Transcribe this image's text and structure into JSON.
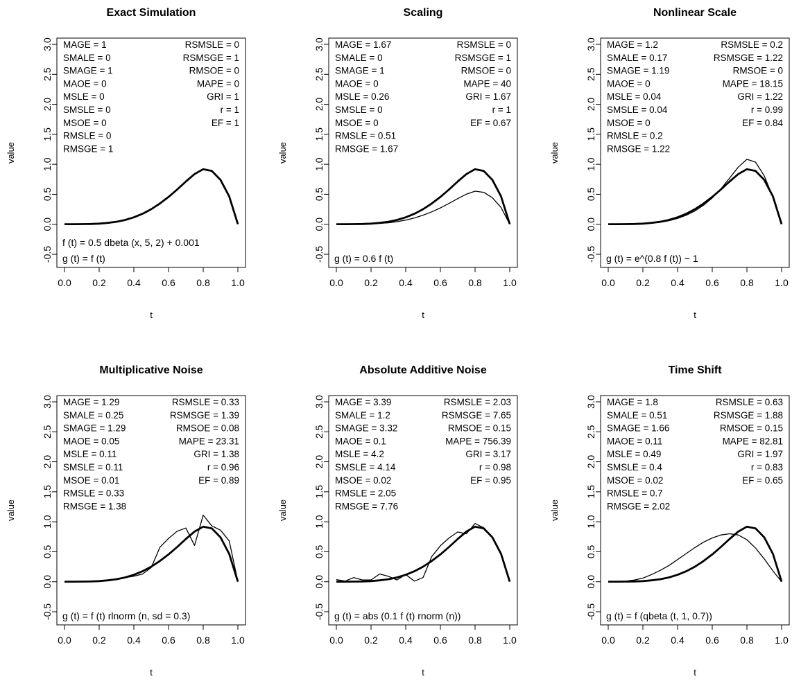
{
  "figure": {
    "xlabel": "t",
    "ylabel": "value",
    "xlim": [
      0,
      1
    ],
    "ylim": [
      -0.5,
      3.0
    ],
    "xticks": [
      "0.0",
      "0.2",
      "0.4",
      "0.6",
      "0.8",
      "1.0"
    ],
    "yticks": [
      "-0.5",
      "0.0",
      "0.5",
      "1.0",
      "1.5",
      "2.0",
      "2.5",
      "3.0"
    ],
    "thick_line_color": "#000000",
    "thin_line_color": "#000000"
  },
  "chart_data": [
    {
      "type": "line",
      "title": "Exact Simulation",
      "xlabel": "t",
      "ylabel": "value",
      "xlim": [
        0,
        1
      ],
      "ylim": [
        -0.5,
        3.0
      ],
      "legend_placement": "top",
      "metrics_left": [
        "MAGE = 1",
        "SMALE = 0",
        "SMAGE = 1",
        "MAOE = 0",
        "MSLE = 0",
        "SMSLE = 0",
        "MSOE = 0",
        "RMSLE = 0",
        "RMSGE = 1"
      ],
      "metrics_right": [
        "RSMSLE = 0",
        "RSMSGE = 1",
        "RMSOE = 0",
        "MAPE = 0",
        "GRI = 1",
        "r = 1",
        "EF = 1"
      ],
      "formulas": [
        "f (t) = 0.5 dbeta (x,  5,  2) + 0.001",
        "g (t) = f (t)"
      ],
      "x": [
        0,
        0.05,
        0.1,
        0.15,
        0.2,
        0.25,
        0.3,
        0.35,
        0.4,
        0.45,
        0.5,
        0.55,
        0.6,
        0.65,
        0.7,
        0.75,
        0.8,
        0.85,
        0.9,
        0.95,
        1.0
      ],
      "series": [
        {
          "values": [
            0.001,
            0.001,
            0.002,
            0.005,
            0.011,
            0.023,
            0.042,
            0.072,
            0.116,
            0.175,
            0.251,
            0.345,
            0.455,
            0.58,
            0.713,
            0.836,
            0.918,
            0.888,
            0.739,
            0.464,
            0.001
          ]
        },
        {
          "values": [
            0.001,
            0.001,
            0.002,
            0.005,
            0.011,
            0.023,
            0.042,
            0.072,
            0.116,
            0.175,
            0.251,
            0.345,
            0.455,
            0.58,
            0.713,
            0.836,
            0.918,
            0.888,
            0.739,
            0.464,
            0.001
          ]
        }
      ]
    },
    {
      "type": "line",
      "title": "Scaling",
      "xlabel": "t",
      "ylabel": "value",
      "xlim": [
        0,
        1
      ],
      "ylim": [
        -0.5,
        3.0
      ],
      "legend_placement": "top",
      "metrics_left": [
        "MAGE = 1.67",
        "SMALE = 0",
        "SMAGE = 1",
        "MAOE = 0",
        "MSLE = 0.26",
        "SMSLE = 0",
        "MSOE = 0",
        "RMSLE = 0.51",
        "RMSGE = 1.67"
      ],
      "metrics_right": [
        "RSMSLE = 0",
        "RSMSGE = 1",
        "RMSOE = 0",
        "MAPE = 40",
        "GRI = 1.67",
        "r = 1",
        "EF = 0.67"
      ],
      "formulas": [
        "g (t) = 0.6 f (t)"
      ],
      "x": [
        0,
        0.05,
        0.1,
        0.15,
        0.2,
        0.25,
        0.3,
        0.35,
        0.4,
        0.45,
        0.5,
        0.55,
        0.6,
        0.65,
        0.7,
        0.75,
        0.8,
        0.85,
        0.9,
        0.95,
        1.0
      ],
      "series": [
        {
          "values": [
            0.001,
            0.001,
            0.002,
            0.005,
            0.011,
            0.023,
            0.042,
            0.072,
            0.116,
            0.175,
            0.251,
            0.345,
            0.455,
            0.58,
            0.713,
            0.836,
            0.918,
            0.888,
            0.739,
            0.464,
            0.001
          ]
        },
        {
          "values": [
            0.001,
            0.001,
            0.001,
            0.003,
            0.007,
            0.014,
            0.025,
            0.043,
            0.07,
            0.105,
            0.151,
            0.207,
            0.273,
            0.348,
            0.428,
            0.502,
            0.551,
            0.533,
            0.443,
            0.278,
            0.001
          ]
        }
      ]
    },
    {
      "type": "line",
      "title": "Nonlinear Scale",
      "xlabel": "t",
      "ylabel": "value",
      "xlim": [
        0,
        1
      ],
      "ylim": [
        -0.5,
        3.0
      ],
      "legend_placement": "top",
      "metrics_left": [
        "MAGE = 1.2",
        "SMALE = 0.17",
        "SMAGE = 1.19",
        "MAOE = 0",
        "MSLE = 0.04",
        "SMSLE = 0.04",
        "MSOE = 0",
        "RMSLE = 0.2",
        "RMSGE = 1.22"
      ],
      "metrics_right": [
        "RSMSLE = 0.2",
        "RSMSGE = 1.22",
        "RMSOE = 0",
        "MAPE = 18.15",
        "GRI = 1.22",
        "r = 0.99",
        "EF = 0.84"
      ],
      "formulas": [
        "g (t) = e^(0.8 f (t)) − 1"
      ],
      "x": [
        0,
        0.05,
        0.1,
        0.15,
        0.2,
        0.25,
        0.3,
        0.35,
        0.4,
        0.45,
        0.5,
        0.55,
        0.6,
        0.65,
        0.7,
        0.75,
        0.8,
        0.85,
        0.9,
        0.95,
        1.0
      ],
      "series": [
        {
          "values": [
            0.001,
            0.001,
            0.002,
            0.005,
            0.011,
            0.023,
            0.042,
            0.072,
            0.116,
            0.175,
            0.251,
            0.345,
            0.455,
            0.58,
            0.713,
            0.836,
            0.918,
            0.888,
            0.739,
            0.464,
            0.001
          ]
        },
        {
          "values": [
            0.001,
            0.001,
            0.002,
            0.004,
            0.009,
            0.019,
            0.034,
            0.059,
            0.097,
            0.15,
            0.222,
            0.318,
            0.439,
            0.591,
            0.769,
            0.952,
            1.084,
            1.035,
            0.808,
            0.45,
            0.001
          ]
        }
      ]
    },
    {
      "type": "line",
      "title": "Multiplicative Noise",
      "xlabel": "t",
      "ylabel": "value",
      "xlim": [
        0,
        1
      ],
      "ylim": [
        -0.5,
        3.0
      ],
      "legend_placement": "top",
      "metrics_left": [
        "MAGE = 1.29",
        "SMALE = 0.25",
        "SMAGE = 1.29",
        "MAOE = 0.05",
        "MSLE = 0.11",
        "SMSLE = 0.11",
        "MSOE = 0.01",
        "RMSLE = 0.33",
        "RMSGE = 1.38"
      ],
      "metrics_right": [
        "RSMSLE = 0.33",
        "RSMSGE = 1.39",
        "RMSOE = 0.08",
        "MAPE = 23.31",
        "GRI = 1.38",
        "r = 0.96",
        "EF = 0.89"
      ],
      "formulas": [
        "g (t) = f (t) rlnorm (n,  sd = 0.3)"
      ],
      "x": [
        0,
        0.05,
        0.1,
        0.15,
        0.2,
        0.25,
        0.3,
        0.35,
        0.4,
        0.45,
        0.5,
        0.55,
        0.6,
        0.65,
        0.7,
        0.75,
        0.8,
        0.85,
        0.9,
        0.95,
        1.0
      ],
      "series": [
        {
          "values": [
            0.001,
            0.001,
            0.002,
            0.005,
            0.011,
            0.023,
            0.042,
            0.072,
            0.116,
            0.175,
            0.251,
            0.345,
            0.455,
            0.58,
            0.713,
            0.836,
            0.918,
            0.888,
            0.739,
            0.464,
            0.001
          ]
        },
        {
          "values": [
            0.001,
            0.001,
            0.003,
            0.004,
            0.014,
            0.02,
            0.05,
            0.069,
            0.093,
            0.128,
            0.235,
            0.573,
            0.722,
            0.842,
            0.895,
            0.605,
            1.11,
            0.93,
            0.86,
            0.68,
            0.001
          ]
        }
      ]
    },
    {
      "type": "line",
      "title": "Absolute Additive Noise",
      "xlabel": "t",
      "ylabel": "value",
      "xlim": [
        0,
        1
      ],
      "ylim": [
        -0.5,
        3.0
      ],
      "legend_placement": "top",
      "metrics_left": [
        "MAGE = 3.39",
        "SMALE = 1.2",
        "SMAGE = 3.32",
        "MAOE = 0.1",
        "MSLE = 4.2",
        "SMSLE = 4.14",
        "MSOE = 0.02",
        "RMSLE = 2.05",
        "RMSGE = 7.76"
      ],
      "metrics_right": [
        "RSMSLE = 2.03",
        "RSMSGE = 7.65",
        "RMSOE = 0.15",
        "MAPE = 756.39",
        "GRI = 3.17",
        "r = 0.98",
        "EF = 0.95"
      ],
      "formulas": [
        "g (t) = abs (0.1 f (t) rnorm (n))"
      ],
      "x": [
        0,
        0.05,
        0.1,
        0.15,
        0.2,
        0.25,
        0.3,
        0.35,
        0.4,
        0.45,
        0.5,
        0.55,
        0.6,
        0.65,
        0.7,
        0.75,
        0.8,
        0.85,
        0.9,
        0.95,
        1.0
      ],
      "series": [
        {
          "values": [
            0.001,
            0.001,
            0.002,
            0.005,
            0.011,
            0.023,
            0.042,
            0.072,
            0.116,
            0.175,
            0.251,
            0.345,
            0.455,
            0.58,
            0.713,
            0.836,
            0.918,
            0.888,
            0.739,
            0.464,
            0.001
          ]
        },
        {
          "values": [
            0.035,
            0.01,
            0.07,
            0.03,
            0.03,
            0.13,
            0.09,
            0.03,
            0.12,
            0.01,
            0.07,
            0.42,
            0.6,
            0.73,
            0.83,
            0.8,
            0.97,
            0.9,
            0.75,
            0.47,
            0.001
          ]
        }
      ]
    },
    {
      "type": "line",
      "title": "Time Shift",
      "xlabel": "t",
      "ylabel": "value",
      "xlim": [
        0,
        1
      ],
      "ylim": [
        -0.5,
        3.0
      ],
      "legend_placement": "top",
      "metrics_left": [
        "MAGE = 1.8",
        "SMALE = 0.51",
        "SMAGE = 1.66",
        "MAOE = 0.11",
        "MSLE = 0.49",
        "SMSLE = 0.4",
        "MSOE = 0.02",
        "RMSLE = 0.7",
        "RMSGE = 2.02"
      ],
      "metrics_right": [
        "RSMSLE = 0.63",
        "RSMSGE = 1.88",
        "RMSOE = 0.15",
        "MAPE = 82.81",
        "GRI = 1.97",
        "r = 0.83",
        "EF = 0.65"
      ],
      "formulas": [
        "g (t) = f (qbeta (t,  1,  0.7))"
      ],
      "x": [
        0,
        0.05,
        0.1,
        0.15,
        0.2,
        0.25,
        0.3,
        0.35,
        0.4,
        0.45,
        0.5,
        0.55,
        0.6,
        0.65,
        0.7,
        0.75,
        0.8,
        0.85,
        0.9,
        0.95,
        1.0
      ],
      "series": [
        {
          "values": [
            0.001,
            0.001,
            0.002,
            0.005,
            0.011,
            0.023,
            0.042,
            0.072,
            0.116,
            0.175,
            0.251,
            0.345,
            0.455,
            0.58,
            0.713,
            0.836,
            0.918,
            0.888,
            0.739,
            0.464,
            0.001
          ]
        },
        {
          "values": [
            0.001,
            0.002,
            0.009,
            0.028,
            0.06,
            0.12,
            0.19,
            0.27,
            0.37,
            0.47,
            0.57,
            0.66,
            0.73,
            0.78,
            0.8,
            0.78,
            0.7,
            0.56,
            0.38,
            0.18,
            0.001
          ]
        }
      ]
    }
  ]
}
